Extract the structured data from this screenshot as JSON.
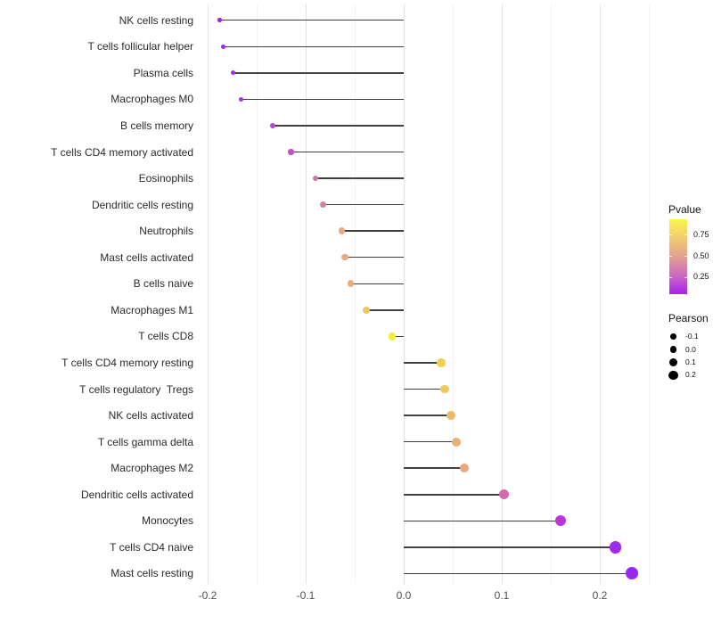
{
  "figure": {
    "background": "#ffffff"
  },
  "chart_data": {
    "type": "scatter",
    "variant": "lollipop",
    "title": "",
    "xlabel": "",
    "ylabel": "",
    "xlim": [
      -0.209,
      0.254
    ],
    "x_ticks": [
      -0.2,
      -0.1,
      0.0,
      0.1,
      0.2
    ],
    "x_tick_labels": [
      "-0.2",
      "-0.1",
      "0.0",
      "0.1",
      "0.2"
    ],
    "x_minor_ticks": [
      -0.15,
      -0.05,
      0.05,
      0.15,
      0.25
    ],
    "grid": "vertical-only",
    "baseline_x": 0.0,
    "stem_color": "#404040",
    "axis_text_color": "#4d4d4d",
    "category_text_color": "#2b2b2b",
    "categories": [
      "NK cells resting",
      "T cells follicular helper",
      "Plasma cells",
      "Macrophages M0",
      "B cells memory",
      "T cells CD4 memory activated",
      "Eosinophils",
      "Dendritic cells resting",
      "Neutrophils",
      "Mast cells activated",
      "B cells naive",
      "Macrophages M1",
      "T cells CD8",
      "T cells CD4 memory resting",
      "T cells regulatory  Tregs",
      "NK cells activated",
      "T cells gamma delta",
      "Macrophages M2",
      "Dendritic cells activated",
      "Monocytes",
      "T cells CD4 naive",
      "Mast cells resting"
    ],
    "pearson": [
      -0.188,
      -0.184,
      -0.174,
      -0.166,
      -0.134,
      -0.115,
      -0.09,
      -0.082,
      -0.063,
      -0.06,
      -0.054,
      -0.038,
      -0.012,
      0.038,
      0.042,
      0.048,
      0.054,
      0.062,
      0.102,
      0.16,
      0.216,
      0.233
    ],
    "pvalue_est": [
      0.02,
      0.03,
      0.05,
      0.07,
      0.16,
      0.2,
      0.38,
      0.42,
      0.55,
      0.56,
      0.57,
      0.68,
      0.9,
      0.7,
      0.68,
      0.62,
      0.58,
      0.55,
      0.34,
      0.11,
      0.04,
      0.02
    ],
    "point_colors": [
      "#A021EE",
      "#A326EA",
      "#A62BE4",
      "#AA31DE",
      "#B748D0",
      "#BD54C6",
      "#CE7AA6",
      "#D28399",
      "#E7A884",
      "#E8AA80",
      "#EAAE78",
      "#EFC75D",
      "#F2EE30",
      "#F0CE50",
      "#EFC95B",
      "#EDBB67",
      "#EBAF72",
      "#E9A87C",
      "#D368AC",
      "#B835D8",
      "#9C2BEB",
      "#9729EF"
    ],
    "legends": {
      "pvalue": {
        "title": "Pvalue",
        "position": "right",
        "tick_labels": [
          "0.75",
          "0.50",
          "0.25"
        ],
        "tick_values": [
          0.75,
          0.5,
          0.25
        ],
        "bar_range": [
          0.93,
          0.05
        ],
        "gradient_stops_top_to_bottom": [
          "#FAF54A",
          "#F2CC6E",
          "#E2A090",
          "#CB6BC2",
          "#A81EF0"
        ]
      },
      "pearson": {
        "title": "Pearson",
        "position": "right",
        "dot_color": "#000000",
        "items": [
          {
            "label": "-0.1",
            "value": -0.1,
            "diameter": 6.6
          },
          {
            "label": "0.0",
            "value": 0.0,
            "diameter": 7.8
          },
          {
            "label": "0.1",
            "value": 0.1,
            "diameter": 9.2
          },
          {
            "label": "0.2",
            "value": 0.2,
            "diameter": 10.4
          }
        ]
      }
    }
  }
}
